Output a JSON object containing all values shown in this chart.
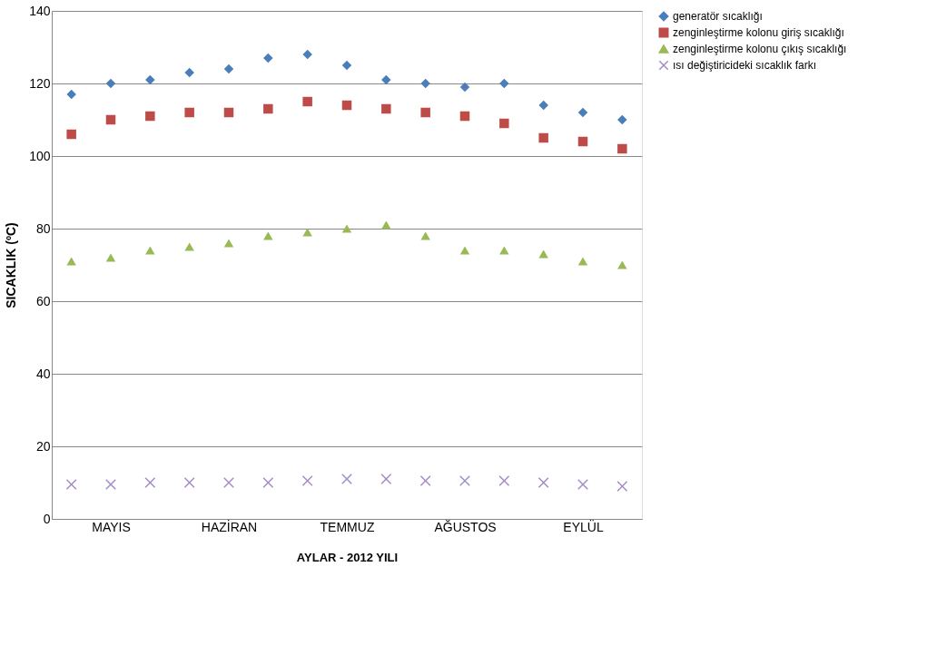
{
  "chart_data": {
    "type": "scatter",
    "xlabel": "AYLAR - 2012 YILI",
    "ylabel": "SICAKLIK (ºC)",
    "categories": [
      null,
      "MAYIS",
      null,
      null,
      "HAZİRAN",
      null,
      null,
      "TEMMUZ",
      null,
      null,
      "AĞUSTOS",
      null,
      null,
      "EYLÜL",
      null
    ],
    "series": [
      {
        "name": "generatör sıcaklığı",
        "color": "#4a7ebb",
        "marker": "diamond",
        "values": [
          117,
          120,
          121,
          123,
          124,
          127,
          128,
          125,
          121,
          120,
          119,
          120,
          114,
          112,
          110
        ]
      },
      {
        "name": "zenginleştirme kolonu giriş sıcaklığı",
        "color": "#be4b48",
        "marker": "square",
        "values": [
          106,
          110,
          111,
          112,
          112,
          113,
          115,
          114,
          113,
          112,
          111,
          109,
          105,
          104,
          102
        ]
      },
      {
        "name": "zenginleştirme kolonu çıkış sıcaklığı",
        "color": "#98b954",
        "marker": "triangle",
        "values": [
          71,
          72,
          74,
          75,
          76,
          78,
          79,
          80,
          81,
          78,
          74,
          74,
          73,
          71,
          70
        ]
      },
      {
        "name": "ısı değiştiricideki sıcaklık farkı",
        "color": "#a48cc6",
        "marker": "cross",
        "values": [
          9.5,
          9.5,
          10,
          10,
          10,
          10,
          10.5,
          11,
          11,
          10.5,
          10.5,
          10.5,
          10,
          9.5,
          9
        ]
      }
    ],
    "ylim": [
      0,
      140
    ],
    "yticks": [
      0,
      20,
      40,
      60,
      80,
      100,
      120,
      140
    ],
    "grid": "y",
    "legend": "right"
  }
}
